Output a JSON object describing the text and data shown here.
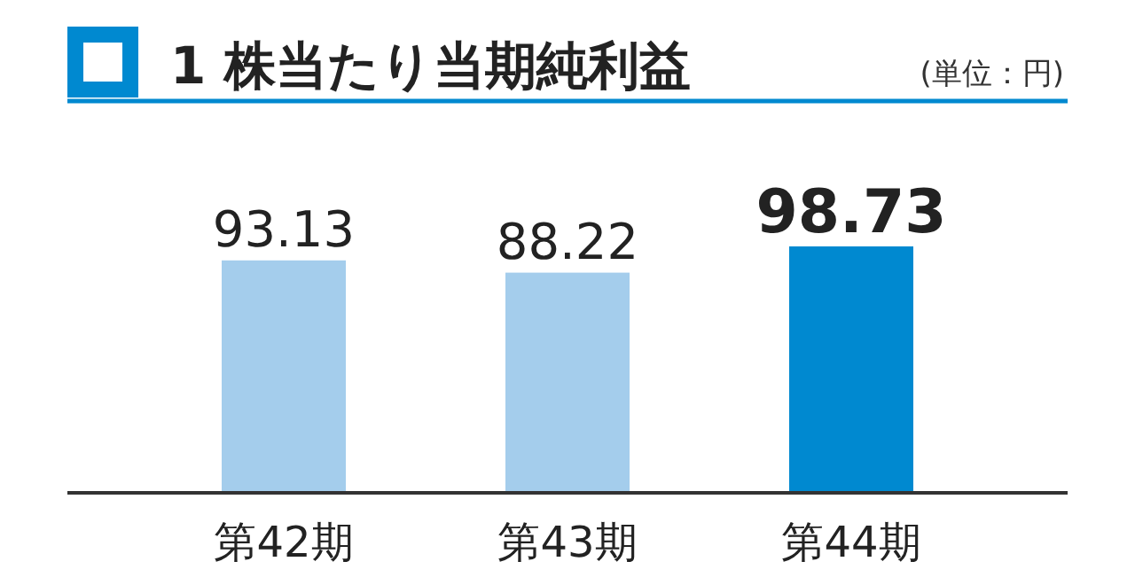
{
  "chart_data": {
    "type": "bar",
    "title": "1 株当たり当期純利益",
    "annotations": [
      "(単位：円)"
    ],
    "categories": [
      "第42期",
      "第43期",
      "第44期"
    ],
    "values": [
      93.13,
      88.22,
      98.73
    ],
    "colors": [
      "#a4cdec",
      "#a4cdec",
      "#0089d0"
    ],
    "data_labels": true
  }
}
